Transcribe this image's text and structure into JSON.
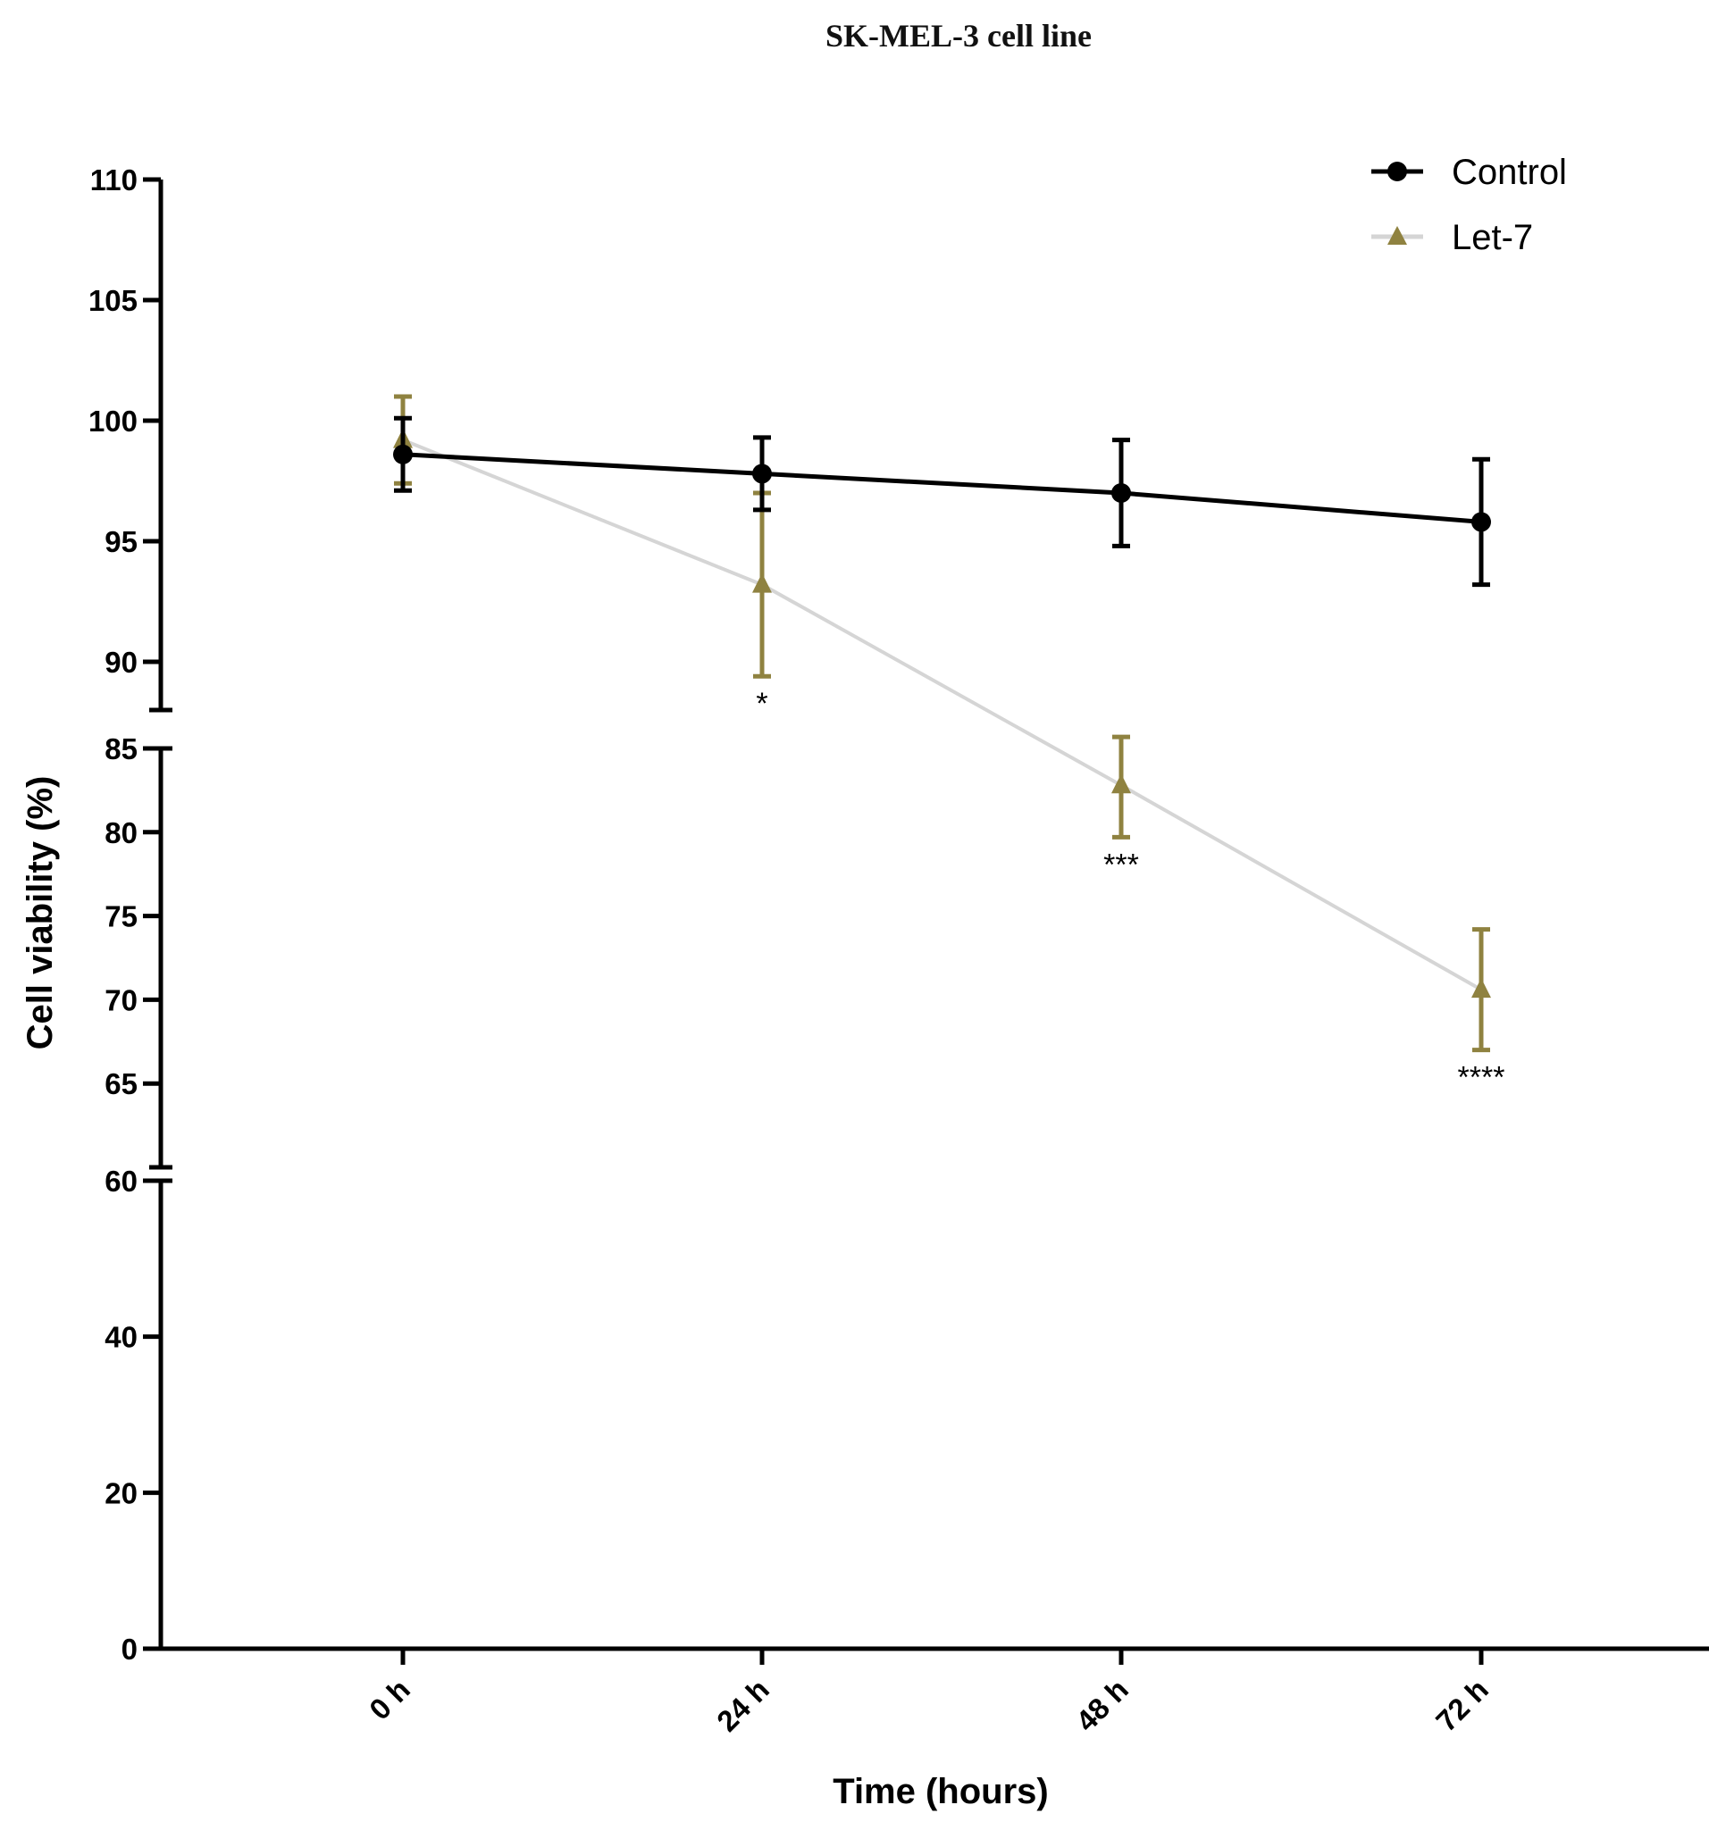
{
  "chart_data": {
    "type": "line",
    "title": "SK-MEL-3 cell line",
    "xlabel": "Time (hours)",
    "ylabel": "Cell viability (%)",
    "categories": [
      "0 h",
      "24 h",
      "48 h",
      "72 h"
    ],
    "y_axis_breaks": [
      [
        60,
        85
      ],
      [
        88,
        110
      ]
    ],
    "y_ticks": [
      0,
      20,
      40,
      60,
      65,
      70,
      75,
      80,
      85,
      90,
      95,
      100,
      105,
      110
    ],
    "legend_position": "top-right",
    "series": [
      {
        "name": "Control",
        "marker": "circle",
        "color": "#000000",
        "line_color": "#000000",
        "values": [
          98.6,
          97.8,
          97.0,
          95.8
        ],
        "error": [
          1.5,
          1.5,
          2.2,
          2.6
        ]
      },
      {
        "name": "Let-7",
        "marker": "triangle",
        "color": "#8f8240",
        "line_color": "#d5d5d5",
        "values": [
          99.2,
          93.2,
          82.8,
          70.6
        ],
        "error": [
          1.8,
          3.8,
          3.1,
          3.6
        ]
      }
    ],
    "annotations": [
      {
        "category": "24 h",
        "text": "*"
      },
      {
        "category": "48 h",
        "text": "***"
      },
      {
        "category": "72 h",
        "text": "****"
      }
    ]
  }
}
